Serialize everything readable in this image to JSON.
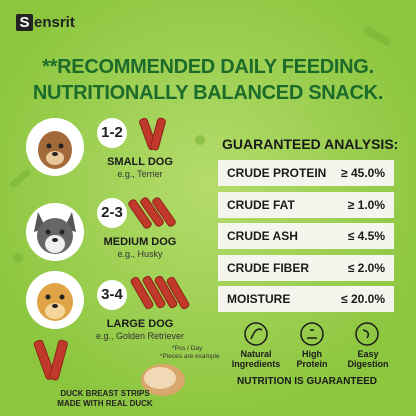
{
  "header": {
    "logo_letter": "S",
    "logo_text": "ensrit",
    "title": [
      "**RECOMMENDED DAILY FEEDING.",
      "NUTRITIONALLY BALANCED SNACK."
    ]
  },
  "feeding": [
    {
      "count": "1-2",
      "size": "SMALL DOG",
      "example": "e.g., Terrier"
    },
    {
      "count": "2-3",
      "size": "MEDIUM DOG",
      "example": "e.g., Husky"
    },
    {
      "count": "3-4",
      "size": "LARGE DOG",
      "example": "e.g., Golden Retriever"
    }
  ],
  "notes": [
    "*Pcs / Day",
    "*Pieces are example"
  ],
  "caption": [
    "DUCK BREAST STRIPS",
    "MADE WITH REAL DUCK"
  ],
  "analysis": {
    "title": "GUARANTEED ANALYSIS:",
    "rows": [
      [
        "CRUDE PROTEIN",
        "≥ 45.0%"
      ],
      [
        "CRUDE FAT",
        "≥ 1.0%"
      ],
      [
        "CRUDE ASH",
        "≤ 4.5%"
      ],
      [
        "CRUDE FIBER",
        "≤ 2.0%"
      ],
      [
        "MOISTURE",
        "≤ 20.0%"
      ]
    ]
  },
  "features": [
    [
      "Natural",
      "Ingredients"
    ],
    [
      "High",
      "Protein"
    ],
    [
      "Easy",
      "Digestion"
    ]
  ],
  "footer": "NUTRITION IS GUARANTEED"
}
